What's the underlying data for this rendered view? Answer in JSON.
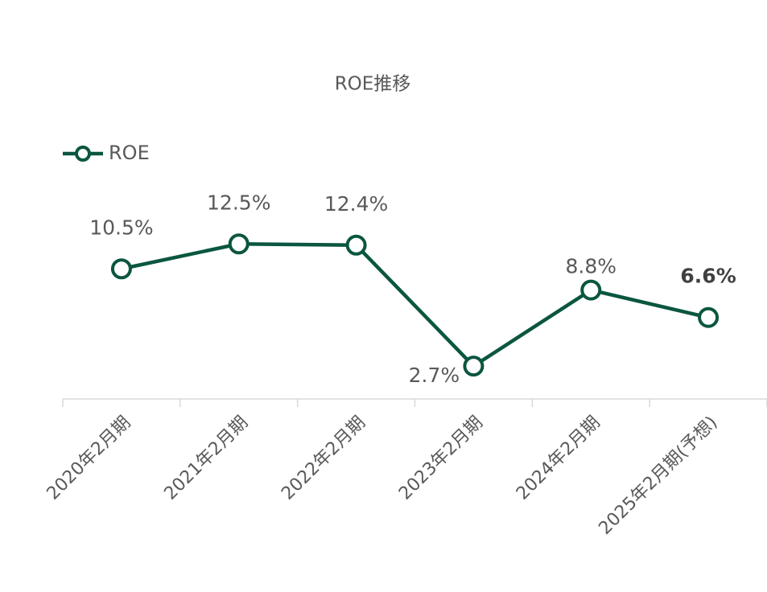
{
  "chart_data": {
    "type": "line",
    "title": "ROE推移",
    "categories": [
      "2020年2月期",
      "2021年2月期",
      "2022年2月期",
      "2023年2月期",
      "2024年2月期",
      "2025年2月期(予想)"
    ],
    "series": [
      {
        "name": "ROE",
        "color": "#0b5640",
        "values": [
          10.5,
          12.5,
          12.4,
          2.7,
          8.8,
          6.6
        ],
        "value_labels": [
          "10.5%",
          "12.5%",
          "12.4%",
          "2.7%",
          "8.8%",
          "6.6%"
        ]
      }
    ],
    "legend": "top-left"
  }
}
